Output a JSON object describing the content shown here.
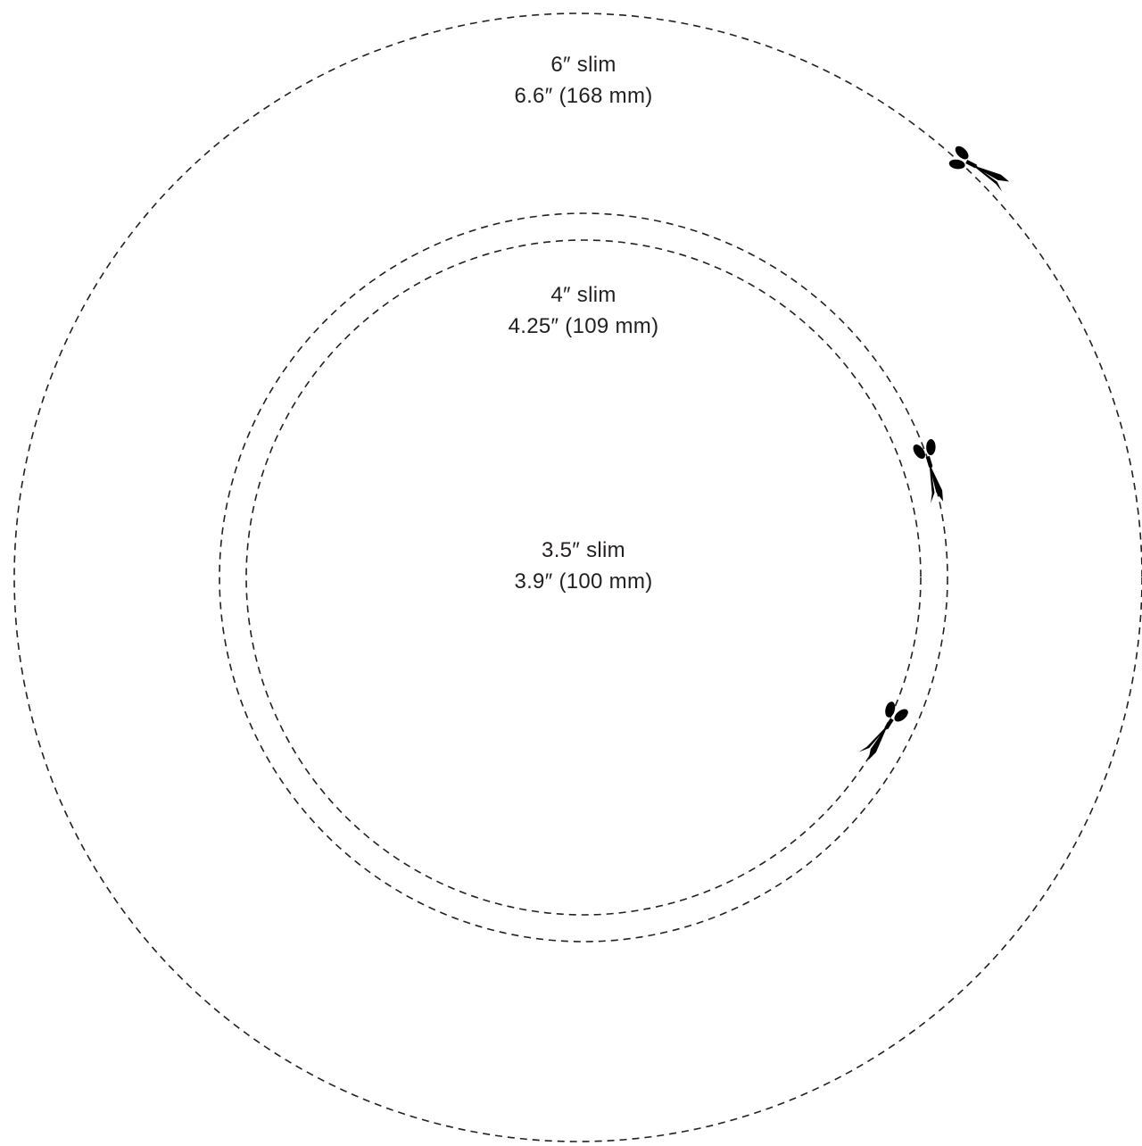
{
  "rings": [
    {
      "id": "6-inch",
      "size_label": "6″ slim",
      "diameter_label": "6.6″ (168 mm)"
    },
    {
      "id": "4-inch",
      "size_label": "4″ slim",
      "diameter_label": "4.25″ (109 mm)"
    },
    {
      "id": "3-5-inch",
      "size_label": "3.5″ slim",
      "diameter_label": "3.9″ (100 mm)"
    }
  ],
  "icons": {
    "cut_marker": "scissors-icon"
  },
  "colors": {
    "line": "#231f20",
    "background": "#ffffff"
  }
}
